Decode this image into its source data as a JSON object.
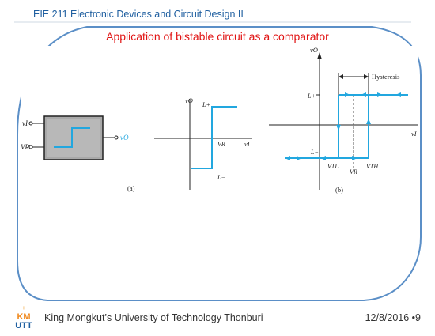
{
  "header": {
    "course": "EIE 211 Electronic Devices and Circuit Design II",
    "title": "Application of bistable circuit as a comparator"
  },
  "figure": {
    "panel_a": {
      "input_label": "vI",
      "ref_label": "VR",
      "output_label": "vO",
      "caption": "(a)"
    },
    "transfer": {
      "y_axis": "vO",
      "x_axis": "vI",
      "upper": "L+",
      "lower": "L−",
      "threshold": "VR"
    },
    "hysteresis": {
      "y_axis": "vO",
      "x_axis": "vI",
      "upper": "L+",
      "lower": "L−",
      "hysteresis_label": "Hysteresis",
      "vtl": "VTL",
      "vr": "VR",
      "vth": "VTH",
      "caption": "(b)"
    }
  },
  "footer": {
    "institution": "King Mongkut’s University of Technology Thonburi",
    "date": "12/8/2016",
    "page": "9",
    "logo_text": "KMUTT"
  },
  "colors": {
    "accent_blue": "#1f5fa0",
    "title_red": "#e11414",
    "trace_cyan": "#22a7df"
  }
}
